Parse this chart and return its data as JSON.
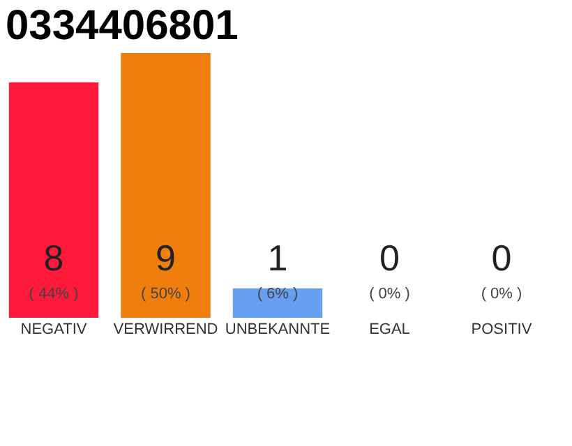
{
  "chart_data": {
    "type": "bar",
    "title": "0334406801",
    "categories": [
      "NEGATIV",
      "VERWIRREND",
      "UNBEKANNTE",
      "EGAL",
      "POSITIV"
    ],
    "values": [
      8,
      9,
      1,
      0,
      0
    ],
    "colors": [
      "#ff1a3c",
      "#f07e0c",
      "#669ff0",
      "#7dc86a",
      "#21a045"
    ],
    "ylim": [
      0,
      9
    ],
    "data_labels": true,
    "grid": false,
    "annotations": [
      "( 44% )",
      "( 50% )",
      "( 6% )",
      "( 0% )",
      "( 0% )"
    ],
    "tick_labels": "x"
  }
}
